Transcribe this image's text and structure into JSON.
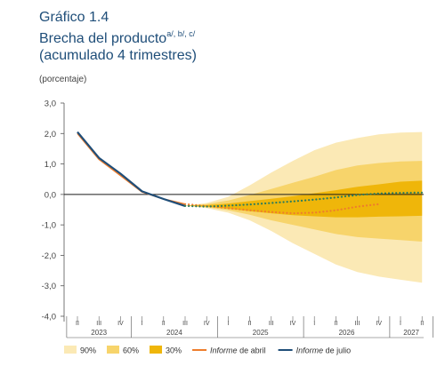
{
  "title": {
    "line1": "Gráfico 1.4",
    "line2": "Brecha del producto",
    "line2_notes": "a/, b/, c/",
    "line3": "(acumulado 4 trimestres)"
  },
  "ylabel": "(porcentaje)",
  "colors": {
    "title": "#1f4e79",
    "band90": "#fbe9b5",
    "band60": "#f7d46b",
    "band30": "#efb60a",
    "abril": "#ee7d2c",
    "julio": "#1f4e79",
    "julio_forecast": "#2e7d5b"
  },
  "chart_data": {
    "type": "line",
    "ylim": [
      -4,
      3
    ],
    "yticks": [
      -4,
      -3,
      -2,
      -1,
      0,
      1,
      2,
      3
    ],
    "ytick_labels": [
      "-4,0",
      "-3,0",
      "-2,0",
      "-1,0",
      "0,0",
      "1,0",
      "2,0",
      "3,0"
    ],
    "quarters": [
      "II",
      "III",
      "IV",
      "I",
      "II",
      "III",
      "IV",
      "I",
      "II",
      "III",
      "IV",
      "I",
      "II",
      "III",
      "IV",
      "I",
      "II"
    ],
    "years": [
      {
        "label": "2023",
        "first": 0,
        "last": 2
      },
      {
        "label": "2024",
        "first": 3,
        "last": 6
      },
      {
        "label": "2025",
        "first": 7,
        "last": 10
      },
      {
        "label": "2026",
        "first": 11,
        "last": 14
      },
      {
        "label": "2027",
        "first": 15,
        "last": 16
      }
    ],
    "fan_start_index": 5,
    "fan_chart": {
      "x": [
        5,
        6,
        7,
        8,
        9,
        10,
        11,
        12,
        13,
        14,
        15,
        16
      ],
      "p90_low": [
        -0.37,
        -0.45,
        -0.6,
        -0.85,
        -1.2,
        -1.6,
        -1.95,
        -2.3,
        -2.55,
        -2.7,
        -2.8,
        -2.9
      ],
      "p60_low": [
        -0.37,
        -0.42,
        -0.52,
        -0.67,
        -0.85,
        -1.0,
        -1.15,
        -1.3,
        -1.4,
        -1.45,
        -1.5,
        -1.55
      ],
      "p30_low": [
        -0.37,
        -0.4,
        -0.47,
        -0.55,
        -0.62,
        -0.68,
        -0.72,
        -0.75,
        -0.75,
        -0.73,
        -0.72,
        -0.7
      ],
      "p30_high": [
        -0.37,
        -0.35,
        -0.3,
        -0.22,
        -0.14,
        -0.06,
        0.04,
        0.14,
        0.25,
        0.33,
        0.42,
        0.45
      ],
      "p60_high": [
        -0.37,
        -0.32,
        -0.2,
        -0.02,
        0.18,
        0.38,
        0.58,
        0.8,
        0.95,
        1.03,
        1.08,
        1.1
      ],
      "p90_high": [
        -0.37,
        -0.28,
        -0.08,
        0.3,
        0.72,
        1.1,
        1.45,
        1.7,
        1.85,
        1.97,
        2.03,
        2.05
      ]
    },
    "series": [
      {
        "name": "Informe de abril",
        "x": [
          0,
          1,
          2,
          3,
          4,
          5,
          6,
          7,
          8,
          9,
          10,
          11,
          12,
          13,
          14
        ],
        "values": [
          2.0,
          1.15,
          0.62,
          0.08,
          -0.15,
          -0.32,
          -0.38,
          -0.45,
          -0.52,
          -0.58,
          -0.62,
          -0.6,
          -0.52,
          -0.4,
          -0.32
        ],
        "forecast_from": 5
      },
      {
        "name": "Informe de julio",
        "x": [
          0,
          1,
          2,
          3,
          4,
          5,
          6,
          7,
          8,
          9,
          10,
          11,
          12,
          13,
          14,
          15,
          16
        ],
        "values": [
          2.05,
          1.2,
          0.68,
          0.1,
          -0.15,
          -0.38,
          -0.4,
          -0.37,
          -0.33,
          -0.28,
          -0.23,
          -0.17,
          -0.1,
          -0.02,
          0.03,
          0.05,
          0.06
        ],
        "forecast_from": 5
      }
    ],
    "legend": {
      "position": "bottom",
      "items": [
        {
          "label": "90%",
          "kind": "box",
          "color_key": "band90"
        },
        {
          "label": "60%",
          "kind": "box",
          "color_key": "band60"
        },
        {
          "label": "30%",
          "kind": "box",
          "color_key": "band30"
        },
        {
          "label": "Informe de abril",
          "kind": "line",
          "color_key": "abril"
        },
        {
          "label": "Informe de julio",
          "kind": "line",
          "color_key": "julio"
        }
      ]
    }
  }
}
